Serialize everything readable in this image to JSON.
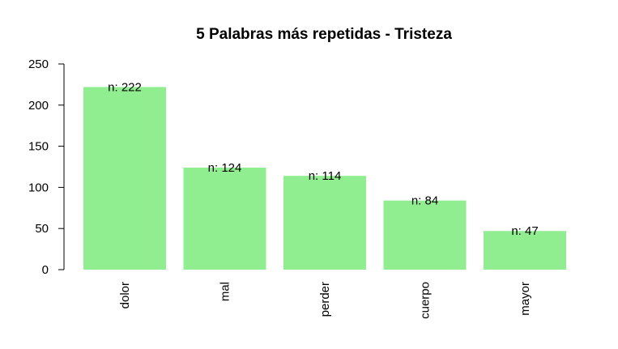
{
  "chart_data": {
    "type": "bar",
    "title": "5 Palabras más repetidas - Tristeza",
    "xlabel": "",
    "ylabel": "",
    "categories": [
      "dolor",
      "mal",
      "perder",
      "cuerpo",
      "mayor"
    ],
    "values": [
      222,
      124,
      114,
      84,
      47
    ],
    "data_labels": [
      "n: 222",
      "n: 124",
      "n: 114",
      "n: 84",
      "n: 47"
    ],
    "bar_color": "#90EE90",
    "ylim": [
      0,
      250
    ],
    "yticks": [
      0,
      50,
      100,
      150,
      200,
      250
    ],
    "grid": false,
    "legend": "none"
  }
}
